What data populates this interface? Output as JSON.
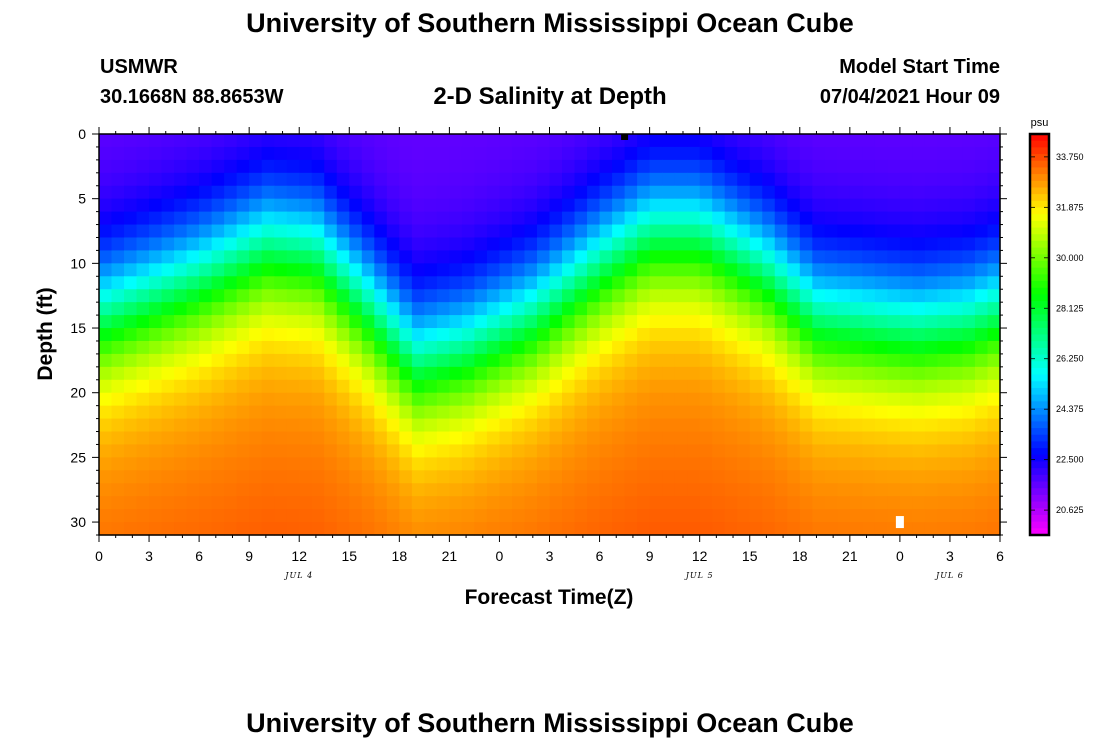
{
  "header": {
    "title_top": "University of Southern Mississippi Ocean Cube",
    "title_bottom": "University of Southern Mississippi Ocean Cube",
    "station": "USMWR",
    "coords": "30.1668N  88.8653W",
    "plot_title": "2-D Salinity at Depth",
    "model_start_label": "Model Start Time",
    "model_start_value": "07/04/2021 Hour 09"
  },
  "chart_data": {
    "type": "heatmap",
    "title": "2-D Salinity at Depth",
    "xlabel": "Forecast Time(Z)",
    "ylabel": "Depth (ft)",
    "x_range_hours": [
      0,
      54
    ],
    "y_range_ft": [
      0,
      31
    ],
    "x_tick_labels": [
      "0",
      "3",
      "6",
      "9",
      "12",
      "15",
      "18",
      "21",
      "0",
      "3",
      "6",
      "9",
      "12",
      "15",
      "18",
      "21",
      "0",
      "3",
      "6"
    ],
    "y_tick_labels": [
      "0",
      "5",
      "10",
      "15",
      "20",
      "25",
      "30"
    ],
    "y_tick_values": [
      0,
      5,
      10,
      15,
      20,
      25,
      30
    ],
    "date_labels": [
      {
        "text": "JUL 4",
        "hour": 12
      },
      {
        "text": "JUL 5",
        "hour": 36
      },
      {
        "text": "JUL 6",
        "hour": 51
      }
    ],
    "colorbar": {
      "unit": "psu",
      "min": 19.7,
      "max": 34.6,
      "tick_labels": [
        "33.750",
        "31.875",
        "30.000",
        "28.125",
        "26.250",
        "24.375",
        "22.500",
        "20.625"
      ],
      "tick_values": [
        33.75,
        31.875,
        30.0,
        28.125,
        26.25,
        24.375,
        22.5,
        20.625
      ]
    },
    "halocline_hours": [
      0,
      6,
      10,
      13,
      16,
      19,
      22,
      26,
      30,
      33,
      36,
      40,
      43,
      46,
      49,
      52,
      54
    ],
    "halocline_depths_ft": [
      14,
      11,
      8.5,
      9,
      13,
      17.5,
      16.5,
      14,
      10,
      7.5,
      7.5,
      10.5,
      14,
      14.5,
      15,
      14.5,
      13.5
    ],
    "surface_salinity_psu": 21.5,
    "deep_salinity_psu": 32.5,
    "markers": [
      {
        "name": "current-time",
        "hour": 31.5,
        "depth": 0,
        "color": "#000000"
      },
      {
        "name": "obs",
        "hour": 48,
        "depth": 30,
        "color": "#ffffff"
      }
    ]
  }
}
